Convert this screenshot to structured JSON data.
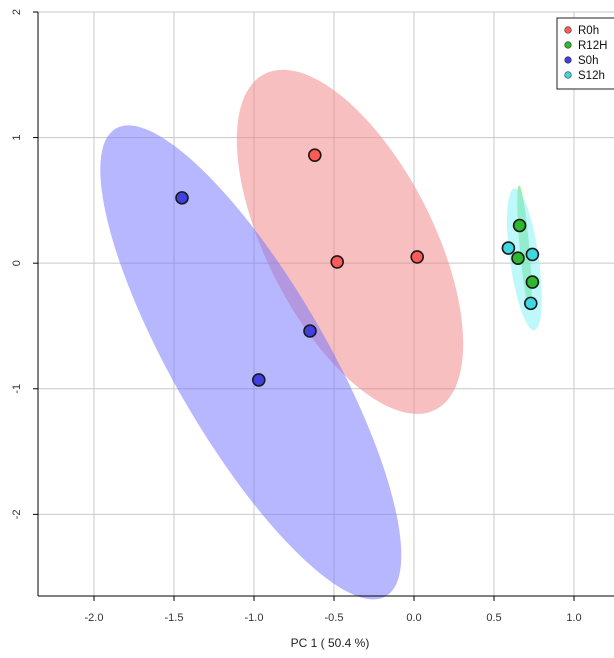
{
  "chart_data": {
    "type": "scatter",
    "title": "",
    "xlabel": "PC 1 ( 50.4 %)",
    "ylabel": "",
    "xlim": [
      -2.35,
      1.25
    ],
    "ylim": [
      -2.65,
      2.0
    ],
    "x_ticks": [
      -2.0,
      -1.5,
      -1.0,
      -0.5,
      0.0,
      0.5,
      1.0
    ],
    "x_tick_labels": [
      "-2.0",
      "-1.5",
      "-1.0",
      "-0.5",
      "0.0",
      "0.5",
      "1.0"
    ],
    "y_ticks": [
      2,
      1,
      0,
      -1,
      -2
    ],
    "y_tick_labels": [
      "2",
      "1",
      "0",
      "-1",
      "-2"
    ],
    "grid": true,
    "legend_position": "top-right",
    "series": [
      {
        "name": "R0h",
        "color": "#ff5a5a",
        "fill": "#f08080",
        "points": [
          [
            -0.62,
            0.86
          ],
          [
            -0.48,
            0.01
          ],
          [
            0.02,
            0.05
          ]
        ],
        "ellipse": {
          "center": [
            -0.4,
            0.17
          ],
          "rx": 0.52,
          "ry": 1.5,
          "rotation_deg": -27
        }
      },
      {
        "name": "R12H",
        "color": "#2db82d",
        "fill": "#4cd24c",
        "points": [
          [
            0.66,
            0.3
          ],
          [
            0.65,
            0.04
          ],
          [
            0.74,
            -0.15
          ]
        ],
        "ellipse": {
          "center": [
            0.69,
            0.13
          ],
          "rx": 0.03,
          "ry": 0.49,
          "rotation_deg": -5
        }
      },
      {
        "name": "S0h",
        "color": "#4040e0",
        "fill": "#7070ff",
        "points": [
          [
            -1.45,
            0.52
          ],
          [
            -0.65,
            -0.54
          ],
          [
            -0.97,
            -0.93
          ]
        ],
        "ellipse": {
          "center": [
            -1.02,
            -0.79
          ],
          "rx": 0.48,
          "ry": 2.15,
          "rotation_deg": -30
        }
      },
      {
        "name": "S12h",
        "color": "#40d8e0",
        "fill": "#7ff2f5",
        "points": [
          [
            0.59,
            0.12
          ],
          [
            0.74,
            0.07
          ],
          [
            0.73,
            -0.32
          ]
        ],
        "ellipse": {
          "center": [
            0.69,
            0.03
          ],
          "rx": 0.09,
          "ry": 0.57,
          "rotation_deg": -8
        }
      }
    ]
  }
}
